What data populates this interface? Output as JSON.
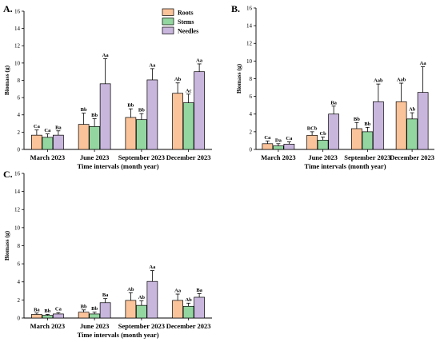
{
  "colors": {
    "Roots": "#fbc39a",
    "Stems": "#93d6a0",
    "Needles": "#c9b6dd",
    "stroke": "#000000"
  },
  "legend": {
    "placement": "top-right-of-panel-A",
    "entries": [
      "Roots",
      "Stems",
      "Needles"
    ]
  },
  "chart_data": [
    {
      "panel": "A.",
      "type": "bar",
      "title": "",
      "xlabel": "Time intervals (month year)",
      "ylabel": "Biomass (g)",
      "ylim": [
        0,
        16
      ],
      "yticks": [
        "0",
        "2",
        "4",
        "6",
        "8",
        "10",
        "12",
        "14",
        "16"
      ],
      "categories": [
        "March 2023",
        "June 2023",
        "September 2023",
        "December 2023"
      ],
      "grid": false,
      "series": [
        {
          "name": "Roots",
          "values": [
            1.65,
            2.9,
            3.7,
            6.5
          ],
          "errors": [
            0.6,
            1.3,
            1.0,
            1.2
          ],
          "labels": [
            "Ca",
            "Bb",
            "Bb",
            "Ab"
          ]
        },
        {
          "name": "Stems",
          "values": [
            1.4,
            2.65,
            3.45,
            5.4
          ],
          "errors": [
            0.4,
            0.9,
            0.7,
            1.0
          ],
          "labels": [
            "Ca",
            "Bb",
            "Bb",
            "Ac"
          ]
        },
        {
          "name": "Needles",
          "values": [
            1.65,
            7.6,
            8.05,
            9.0
          ],
          "errors": [
            0.5,
            2.9,
            1.3,
            0.9
          ],
          "labels": [
            "Ba",
            "Aa",
            "Aa",
            "Aa"
          ]
        }
      ]
    },
    {
      "panel": "B.",
      "type": "bar",
      "title": "",
      "xlabel": "Time intervals (month year)",
      "ylabel": "Biomass (g)",
      "ylim": [
        0,
        16
      ],
      "yticks": [
        "0",
        "2",
        "4",
        "6",
        "8",
        "10",
        "12",
        "14",
        "16"
      ],
      "categories": [
        "March 2023",
        "June 2023",
        "September 2023",
        "December 2023"
      ],
      "grid": false,
      "series": [
        {
          "name": "Roots",
          "values": [
            0.65,
            1.6,
            2.35,
            5.4
          ],
          "errors": [
            0.3,
            0.4,
            0.7,
            2.1
          ],
          "labels": [
            "Ca",
            "BCb",
            "Bb",
            "Aab"
          ]
        },
        {
          "name": "Stems",
          "values": [
            0.4,
            1.05,
            2.0,
            3.45
          ],
          "errors": [
            0.25,
            0.35,
            0.5,
            0.7
          ],
          "labels": [
            "Da",
            "Cb",
            "Bb",
            "Ab"
          ]
        },
        {
          "name": "Needles",
          "values": [
            0.6,
            4.0,
            5.4,
            6.45
          ],
          "errors": [
            0.25,
            0.9,
            2.0,
            2.9
          ],
          "labels": [
            "Ca",
            "Ba",
            "Aab",
            "Aa"
          ]
        }
      ]
    },
    {
      "panel": "C.",
      "type": "bar",
      "title": "",
      "xlabel": "Time intervals (month year)",
      "ylabel": "Biomass (g)",
      "ylim": [
        0,
        16
      ],
      "yticks": [
        "0",
        "2",
        "4",
        "6",
        "8",
        "10",
        "12",
        "14",
        "16"
      ],
      "categories": [
        "March 2023",
        "June 2023",
        "September 2023",
        "December 2023"
      ],
      "grid": false,
      "series": [
        {
          "name": "Roots",
          "values": [
            0.4,
            0.65,
            1.95,
            1.95
          ],
          "errors": [
            0.15,
            0.25,
            0.85,
            0.7
          ],
          "labels": [
            "Ba",
            "Bb",
            "Ab",
            "Aa"
          ]
        },
        {
          "name": "Stems",
          "values": [
            0.3,
            0.45,
            1.4,
            1.3
          ],
          "errors": [
            0.1,
            0.2,
            0.5,
            0.35
          ],
          "labels": [
            "Bb",
            "Bb",
            "Ab",
            "Ab"
          ]
        },
        {
          "name": "Needles",
          "values": [
            0.45,
            1.7,
            4.05,
            2.3
          ],
          "errors": [
            0.15,
            0.45,
            1.2,
            0.4
          ],
          "labels": [
            "Ca",
            "Ba",
            "Aa",
            "Ba"
          ]
        }
      ]
    }
  ]
}
